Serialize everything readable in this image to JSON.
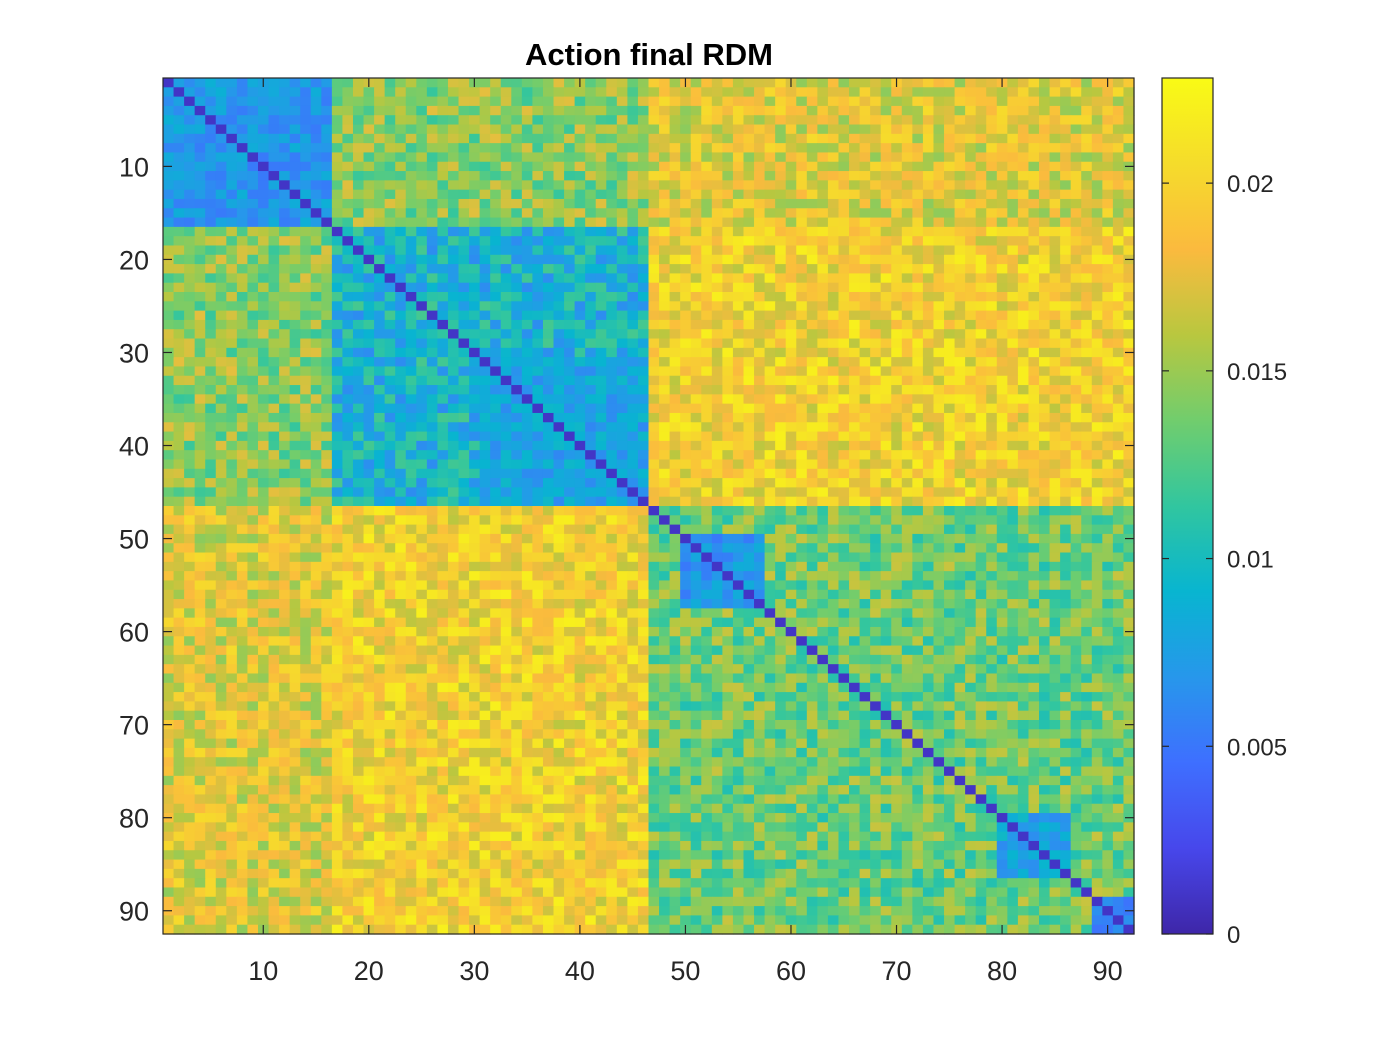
{
  "chart_data": {
    "type": "heatmap",
    "title": "Action final RDM",
    "xlabel": "",
    "ylabel": "",
    "n": 92,
    "x_ticks": [
      10,
      20,
      30,
      40,
      50,
      60,
      70,
      80,
      90
    ],
    "y_ticks": [
      10,
      20,
      30,
      40,
      50,
      60,
      70,
      80,
      90
    ],
    "x_tick_labels": [
      "10",
      "20",
      "30",
      "40",
      "50",
      "60",
      "70",
      "80",
      "90"
    ],
    "y_tick_labels": [
      "10",
      "20",
      "30",
      "40",
      "50",
      "60",
      "70",
      "80",
      "90"
    ],
    "colormap": "parula",
    "color_limits": [
      0,
      0.0228
    ],
    "colorbar": {
      "ticks": [
        0,
        0.005,
        0.01,
        0.015,
        0.02
      ],
      "tick_labels": [
        "0",
        "0.005",
        "0.01",
        "0.015",
        "0.02"
      ]
    },
    "groups": [
      {
        "start": 1,
        "end": 16
      },
      {
        "start": 17,
        "end": 46
      },
      {
        "start": 47,
        "end": 92
      }
    ],
    "block_means": [
      [
        0.0075,
        0.0145,
        0.0175
      ],
      [
        0.0145,
        0.0092,
        0.019
      ],
      [
        0.0175,
        0.019,
        0.0135
      ]
    ],
    "sub_blocks": [
      {
        "start": 1,
        "end": 16,
        "value": 0.007
      },
      {
        "start": 31,
        "end": 46,
        "value": 0.0078
      },
      {
        "start": 50,
        "end": 57,
        "value": 0.0068
      },
      {
        "start": 80,
        "end": 86,
        "value": 0.0078
      },
      {
        "start": 89,
        "end": 92,
        "value": 0.006
      }
    ],
    "diagonal_value": 0.001
  }
}
